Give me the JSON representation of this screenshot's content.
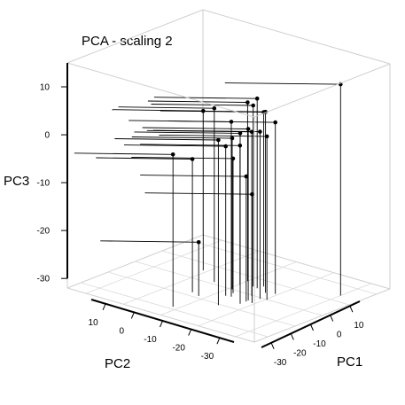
{
  "chart_data": {
    "type": "scatter3d",
    "title": "PCA - scaling 2",
    "xlabel": "PC1",
    "ylabel": "PC2",
    "zlabel": "PC3",
    "xlim": [
      -35,
      15
    ],
    "ylim": [
      -35,
      15
    ],
    "zlim": [
      -32,
      15
    ],
    "x_ticks": [
      "-30",
      "-20",
      "-10",
      "0",
      "10"
    ],
    "y_ticks": [
      "-30",
      "-20",
      "-10",
      "0",
      "10"
    ],
    "z_ticks": [
      "-30",
      "-20",
      "-10",
      "0",
      "10"
    ],
    "grid": true,
    "drop_lines": true,
    "stem_lines": true,
    "points": [
      {
        "x": 3.7,
        "y": 10.0,
        "z": 12.1
      },
      {
        "x": -5.4,
        "y": -5.7,
        "z": 7.6
      },
      {
        "x": -6.6,
        "y": -2.6,
        "z": 5.8
      },
      {
        "x": -5.1,
        "y": -7.0,
        "z": 5.8
      },
      {
        "x": -3.0,
        "y": -10.0,
        "z": 5.3
      },
      {
        "x": -3.4,
        "y": -5.4,
        "z": 4.4
      },
      {
        "x": -5.6,
        "y": -0.7,
        "z": 3.8
      },
      {
        "x": -10.3,
        "y": -3.6,
        "z": 2.2
      },
      {
        "x": -10.1,
        "y": 0.3,
        "z": 2.1
      },
      {
        "x": -10.7,
        "y": -1.1,
        "z": 2.9
      },
      {
        "x": -13.4,
        "y": -2.3,
        "z": 3.8
      },
      {
        "x": -8.8,
        "y": -14.7,
        "z": 4.3
      },
      {
        "x": -14.0,
        "y": -6.4,
        "z": 4.5
      },
      {
        "x": -16.5,
        "y": -2.2,
        "z": 3.6
      },
      {
        "x": -20.7,
        "y": -5.0,
        "z": 2.5
      },
      {
        "x": -9.8,
        "y": -9.2,
        "z": -0.5
      },
      {
        "x": -14.4,
        "y": -7.6,
        "z": -0.8
      },
      {
        "x": -4.2,
        "y": -21.0,
        "z": 1.3
      },
      {
        "x": -6.1,
        "y": -9.8,
        "z": -3.0
      },
      {
        "x": -11.8,
        "y": -7.5,
        "z": -3.9
      },
      {
        "x": -17.7,
        "y": -14.1,
        "z": -4.2
      },
      {
        "x": -14.3,
        "y": -2.2,
        "z": -5.9
      },
      {
        "x": -14.2,
        "y": -0.7,
        "z": -9.3
      },
      {
        "x": -28.6,
        "y": -11.4,
        "z": -0.2
      },
      {
        "x": -18.7,
        "y": -11.7,
        "z": -20.8
      }
    ]
  }
}
